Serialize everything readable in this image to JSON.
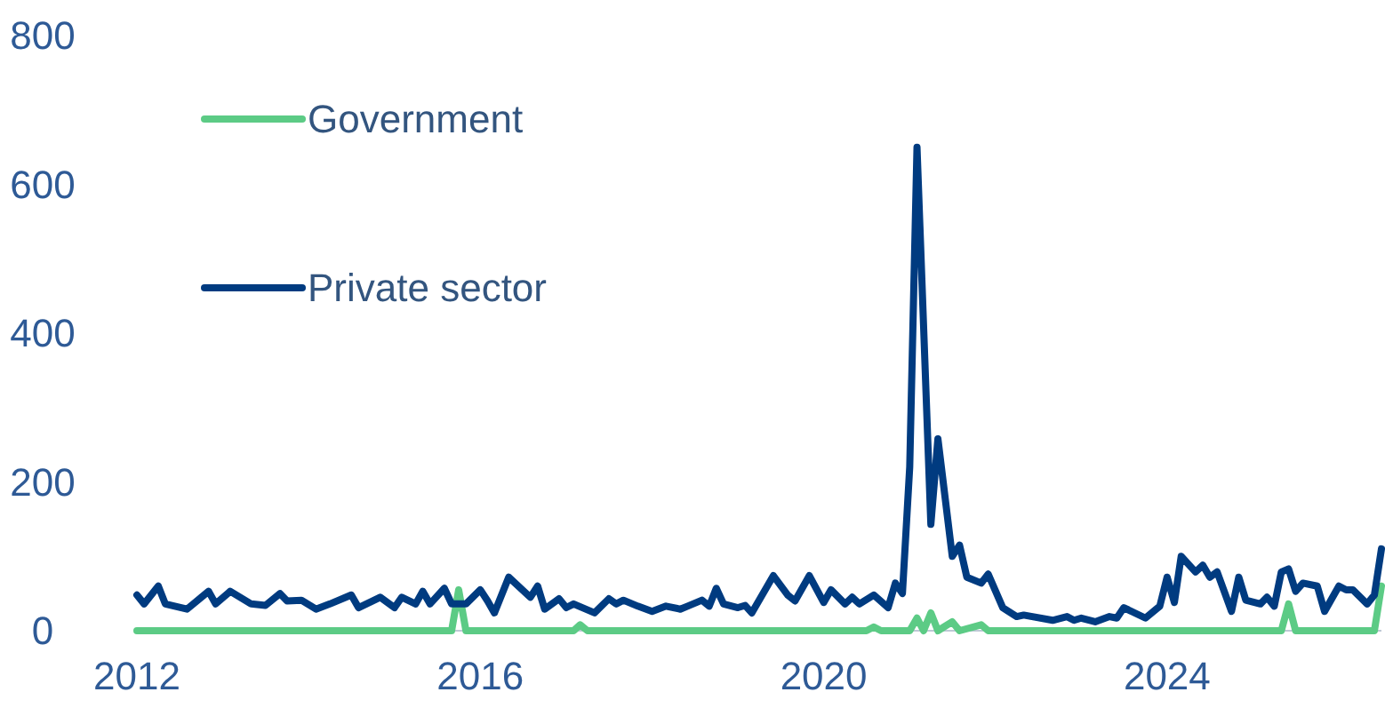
{
  "chart_data": {
    "type": "line",
    "xlim": [
      "2012-01",
      "2026-07"
    ],
    "xticks": [
      {
        "value": "2012-01",
        "label": "2012"
      },
      {
        "value": "2016-01",
        "label": "2016"
      },
      {
        "value": "2020-01",
        "label": "2020"
      },
      {
        "value": "2024-01",
        "label": "2024"
      }
    ],
    "ylim": [
      0,
      800
    ],
    "yticks": [
      0,
      200,
      400,
      600,
      800
    ],
    "grid": false,
    "legend": "top left",
    "line_style": "solid",
    "marker": "none",
    "series": [
      {
        "name": "Government",
        "color": "#5ccb85",
        "x": [
          "2012-01",
          "2015-09",
          "2015-10",
          "2015-11",
          "2017-02",
          "2017-03",
          "2017-04",
          "2020-07",
          "2020-08",
          "2020-09",
          "2021-01",
          "2021-02",
          "2021-03",
          "2021-04",
          "2021-05",
          "2021-07",
          "2021-08",
          "2021-11",
          "2021-12",
          "2025-05",
          "2025-06",
          "2025-07",
          "2026-06",
          "2026-07"
        ],
        "values": [
          0,
          0,
          55,
          0,
          0,
          8,
          0,
          0,
          5,
          0,
          0,
          17,
          0,
          24,
          0,
          12,
          0,
          8,
          0,
          0,
          36,
          0,
          0,
          60
        ]
      },
      {
        "name": "Private sector",
        "color": "#003b80",
        "x": [
          "2012-01",
          "2012-02",
          "2012-04",
          "2012-05",
          "2012-08",
          "2012-11",
          "2012-12",
          "2013-02",
          "2013-05",
          "2013-07",
          "2013-09",
          "2013-10",
          "2013-12",
          "2014-02",
          "2014-04",
          "2014-07",
          "2014-08",
          "2014-11",
          "2015-01",
          "2015-02",
          "2015-04",
          "2015-05",
          "2015-06",
          "2015-08",
          "2015-09",
          "2015-11",
          "2016-01",
          "2016-02",
          "2016-03",
          "2016-05",
          "2016-08",
          "2016-09",
          "2016-10",
          "2016-12",
          "2017-01",
          "2017-02",
          "2017-05",
          "2017-07",
          "2017-08",
          "2017-09",
          "2017-11",
          "2018-01",
          "2018-03",
          "2018-05",
          "2018-06",
          "2018-08",
          "2018-09",
          "2018-10",
          "2018-11",
          "2019-01",
          "2019-02",
          "2019-03",
          "2019-06",
          "2019-08",
          "2019-09",
          "2019-11",
          "2020-01",
          "2020-02",
          "2020-04",
          "2020-05",
          "2020-06",
          "2020-08",
          "2020-10",
          "2020-11",
          "2020-12",
          "2021-01",
          "2021-02",
          "2021-04",
          "2021-05",
          "2021-07",
          "2021-08",
          "2021-09",
          "2021-11",
          "2021-12",
          "2022-02",
          "2022-04",
          "2022-05",
          "2022-09",
          "2022-11",
          "2022-12",
          "2023-01",
          "2023-03",
          "2023-05",
          "2023-06",
          "2023-07",
          "2023-10",
          "2023-12",
          "2024-01",
          "2024-02",
          "2024-03",
          "2024-05",
          "2024-06",
          "2024-07",
          "2024-08",
          "2024-10",
          "2024-11",
          "2024-12",
          "2025-02",
          "2025-03",
          "2025-04",
          "2025-05",
          "2025-06",
          "2025-07",
          "2025-08",
          "2025-10",
          "2025-11",
          "2026-01",
          "2026-02",
          "2026-03",
          "2026-05",
          "2026-06",
          "2026-07"
        ],
        "values": [
          48,
          36,
          60,
          36,
          29,
          53,
          36,
          53,
          36,
          34,
          50,
          40,
          41,
          29,
          36,
          48,
          31,
          45,
          31,
          45,
          36,
          53,
          36,
          57,
          36,
          36,
          55,
          40,
          24,
          72,
          45,
          60,
          29,
          43,
          31,
          36,
          24,
          43,
          36,
          41,
          33,
          26,
          33,
          29,
          33,
          41,
          33,
          57,
          36,
          31,
          34,
          24,
          74,
          48,
          40,
          74,
          38,
          55,
          36,
          45,
          36,
          48,
          31,
          64,
          50,
          220,
          650,
          143,
          258,
          100,
          115,
          72,
          64,
          76,
          31,
          19,
          21,
          14,
          19,
          14,
          17,
          12,
          19,
          17,
          31,
          17,
          33,
          72,
          38,
          100,
          79,
          88,
          72,
          79,
          26,
          72,
          41,
          36,
          45,
          33,
          79,
          83,
          53,
          64,
          60,
          26,
          60,
          55,
          55,
          36,
          48,
          110
        ]
      }
    ]
  }
}
